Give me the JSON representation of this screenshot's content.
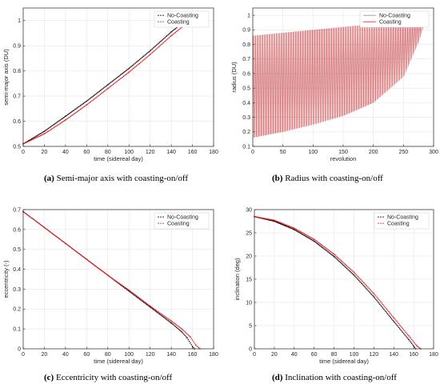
{
  "colors": {
    "no_coasting": "#000000",
    "coasting": "#e8141a",
    "grid": "#e6e6e6",
    "axis": "#262626"
  },
  "chart_data": [
    {
      "id": "a",
      "type": "line",
      "xlabel": "time (sidereal day)",
      "ylabel": "semi-major axis (DU)",
      "xlim": [
        0,
        180
      ],
      "ylim": [
        0.5,
        1.05
      ],
      "xticks": [
        0,
        20,
        40,
        60,
        80,
        100,
        120,
        140,
        160,
        180
      ],
      "yticks": [
        0.5,
        0.6,
        0.7,
        0.8,
        0.9,
        1
      ],
      "grid": true,
      "legend": "top-right",
      "caption_label": "(a)",
      "caption_text": " Semi-major axis with coasting-on/off",
      "series": [
        {
          "name": "No-Coasting",
          "style": "dots",
          "color": "#000000",
          "x": [
            0,
            20,
            40,
            60,
            80,
            100,
            120,
            140,
            152,
            160,
            163
          ],
          "y": [
            0.51,
            0.56,
            0.62,
            0.68,
            0.745,
            0.81,
            0.88,
            0.955,
            0.995,
            1.0,
            1.0
          ]
        },
        {
          "name": "Coasting",
          "style": "dots",
          "color": "#e8141a",
          "x": [
            0,
            20,
            40,
            60,
            80,
            100,
            120,
            140,
            155,
            160,
            168
          ],
          "y": [
            0.51,
            0.55,
            0.605,
            0.665,
            0.73,
            0.795,
            0.865,
            0.94,
            0.99,
            1.0,
            1.0
          ]
        }
      ]
    },
    {
      "id": "b",
      "type": "line",
      "xlabel": "revolution",
      "ylabel": "radius (DU)",
      "xlim": [
        0,
        300
      ],
      "ylim": [
        0.1,
        1.05
      ],
      "xticks": [
        0,
        50,
        100,
        150,
        200,
        250,
        300
      ],
      "yticks": [
        0.1,
        0.2,
        0.3,
        0.4,
        0.5,
        0.6,
        0.7,
        0.8,
        0.9,
        1
      ],
      "grid": true,
      "legend": "top-right",
      "caption_label": "(b)",
      "caption_text": " Radius with coasting-on/off",
      "series": [
        {
          "name": "No-Coasting",
          "style": "line",
          "color": "#888888",
          "x": [
            0,
            50,
            100,
            150,
            200,
            250,
            275,
            290
          ],
          "y_upper": [
            0.86,
            0.88,
            0.9,
            0.92,
            0.94,
            0.97,
            1.0,
            1.02
          ],
          "y_lower": [
            0.16,
            0.2,
            0.25,
            0.31,
            0.4,
            0.58,
            0.82,
            1.02
          ]
        },
        {
          "name": "Coasting",
          "style": "line",
          "color": "#e8141a",
          "x": [
            0,
            50,
            100,
            150,
            200,
            250,
            275,
            290
          ],
          "y_upper": [
            0.86,
            0.88,
            0.9,
            0.92,
            0.94,
            0.97,
            1.0,
            1.02
          ],
          "y_lower": [
            0.16,
            0.2,
            0.25,
            0.31,
            0.4,
            0.58,
            0.82,
            1.02
          ]
        }
      ]
    },
    {
      "id": "c",
      "type": "line",
      "xlabel": "time (sidereal day)",
      "ylabel": "eccentricity (-)",
      "xlim": [
        0,
        180
      ],
      "ylim": [
        0,
        0.7
      ],
      "xticks": [
        0,
        20,
        40,
        60,
        80,
        100,
        120,
        140,
        160,
        180
      ],
      "yticks": [
        0,
        0.1,
        0.2,
        0.3,
        0.4,
        0.5,
        0.6,
        0.7
      ],
      "grid": true,
      "legend": "top-right",
      "caption_label": "(c)",
      "caption_text": " Eccentricity with coasting-on/off",
      "series": [
        {
          "name": "No-Coasting",
          "style": "dots",
          "color": "#000000",
          "x": [
            0,
            20,
            40,
            60,
            80,
            100,
            120,
            140,
            150,
            155,
            160,
            162
          ],
          "y": [
            0.69,
            0.61,
            0.53,
            0.45,
            0.37,
            0.29,
            0.21,
            0.13,
            0.085,
            0.055,
            0.012,
            0
          ]
        },
        {
          "name": "Coasting",
          "style": "dots",
          "color": "#e8141a",
          "x": [
            0,
            20,
            40,
            60,
            80,
            100,
            120,
            140,
            150,
            158,
            163,
            167
          ],
          "y": [
            0.69,
            0.61,
            0.53,
            0.45,
            0.37,
            0.295,
            0.215,
            0.14,
            0.1,
            0.06,
            0.02,
            0
          ]
        }
      ]
    },
    {
      "id": "d",
      "type": "line",
      "xlabel": "time (sidereal day)",
      "ylabel": "inclination (deg)",
      "xlim": [
        0,
        180
      ],
      "ylim": [
        0,
        30
      ],
      "xticks": [
        0,
        20,
        40,
        60,
        80,
        100,
        120,
        140,
        160,
        180
      ],
      "yticks": [
        0,
        5,
        10,
        15,
        20,
        25,
        30
      ],
      "grid": true,
      "legend": "top-right",
      "caption_label": "(d)",
      "caption_text": " Inclination with coasting-on/off",
      "series": [
        {
          "name": "No-Coasting",
          "style": "dots",
          "color": "#000000",
          "x": [
            0,
            20,
            40,
            60,
            80,
            100,
            120,
            140,
            155,
            160,
            162
          ],
          "y": [
            28.5,
            27.5,
            25.7,
            23.2,
            19.9,
            15.9,
            11.2,
            5.9,
            2.0,
            0.6,
            0
          ]
        },
        {
          "name": "Coasting",
          "style": "dots",
          "color": "#e8141a",
          "x": [
            0,
            20,
            40,
            60,
            80,
            100,
            120,
            140,
            155,
            163,
            167
          ],
          "y": [
            28.5,
            27.7,
            26.0,
            23.6,
            20.4,
            16.5,
            11.9,
            6.7,
            2.8,
            0.7,
            0
          ]
        }
      ]
    }
  ]
}
